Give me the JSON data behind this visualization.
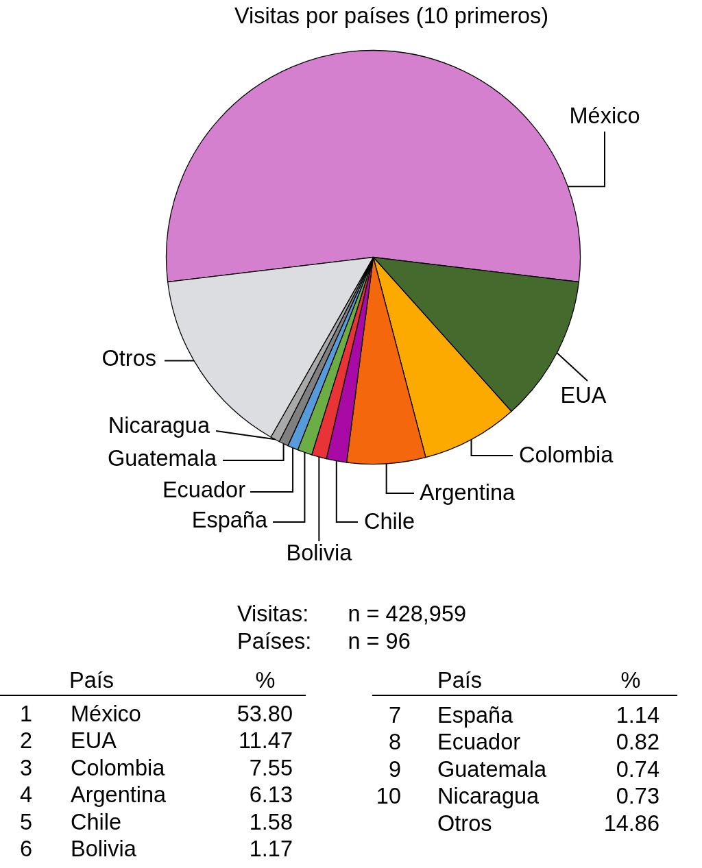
{
  "chart_data": {
    "type": "pie",
    "title": "Visitas por países (10 primeros)",
    "categories": [
      "México",
      "EUA",
      "Colombia",
      "Argentina",
      "Chile",
      "Bolivia",
      "España",
      "Ecuador",
      "Guatemala",
      "Nicaragua",
      "Otros"
    ],
    "values": [
      53.8,
      11.47,
      7.55,
      6.13,
      1.58,
      1.17,
      1.14,
      0.82,
      0.74,
      0.73,
      14.86
    ],
    "colors": [
      "#d580cf",
      "#446a2e",
      "#fdaa00",
      "#f5670d",
      "#a90aa6",
      "#e83337",
      "#6dad46",
      "#579bdb",
      "#808080",
      "#a9a9a9",
      "#dcdde0"
    ],
    "annotations": [
      "Visitas:",
      "n = 428,959",
      "Países:",
      "n = 96",
      "País",
      "%",
      "1",
      "México",
      "53.80",
      "2",
      "EUA",
      "11.47",
      "3",
      "Colombia",
      "7.55",
      "4",
      "Argentina",
      "6.13",
      "5",
      "Chile",
      "1.58",
      "6",
      "Bolivia",
      "1.17",
      "País",
      "%",
      "7",
      "España",
      "1.14",
      "8",
      "Ecuador",
      "0.82",
      "9",
      "Guatemala",
      "0.74",
      "10",
      "Nicaragua",
      "0.73",
      "Otros",
      "14.86"
    ]
  }
}
